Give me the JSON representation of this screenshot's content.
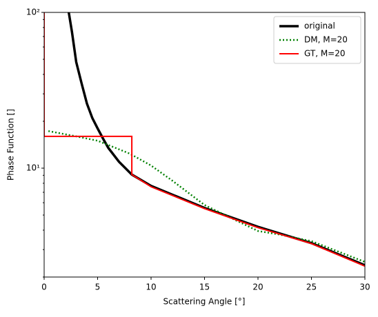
{
  "chart_data": {
    "type": "line",
    "xlabel": "Scattering Angle [°]",
    "ylabel": "Phase Function []",
    "xlim": [
      0,
      30
    ],
    "xticks": [
      0,
      5,
      10,
      15,
      20,
      25,
      30
    ],
    "ylim": [
      2,
      100
    ],
    "yscale": "log",
    "yticks": [
      {
        "value": 10,
        "label": "10¹"
      },
      {
        "value": 100,
        "label": "10²"
      }
    ],
    "yminor_ticks": [
      2,
      3,
      4,
      5,
      6,
      7,
      8,
      9,
      20,
      30,
      40,
      50,
      60,
      70,
      80,
      90
    ],
    "legend": "upper right",
    "series": [
      {
        "name": "original",
        "color": "#000000",
        "style": "solid",
        "width": 3.5,
        "x": [
          2.3,
          2.6,
          3,
          3.5,
          4,
          4.5,
          5,
          5.5,
          6,
          7,
          8.2,
          10,
          15,
          20,
          25,
          30
        ],
        "values": [
          100,
          75,
          48,
          35,
          26,
          21,
          18,
          15.5,
          13.5,
          11,
          9.1,
          7.7,
          5.55,
          4.2,
          3.3,
          2.38
        ]
      },
      {
        "name": "DM, M=20",
        "color": "#008000",
        "style": "dotted",
        "width": 2.5,
        "x": [
          0.4,
          3,
          5,
          8,
          10,
          12,
          15,
          18,
          20,
          22,
          25,
          30
        ],
        "values": [
          17.3,
          16,
          15,
          12.4,
          10.4,
          8.3,
          5.8,
          4.6,
          3.95,
          3.75,
          3.4,
          2.5
        ]
      },
      {
        "name": "GT, M=20",
        "color": "#ff0000",
        "style": "solid",
        "width": 2,
        "x": [
          0,
          0,
          8.2,
          8.2,
          10,
          15,
          20,
          25,
          30
        ],
        "values": [
          100,
          16,
          16,
          9.1,
          7.6,
          5.5,
          4.15,
          3.28,
          2.35
        ]
      }
    ]
  }
}
